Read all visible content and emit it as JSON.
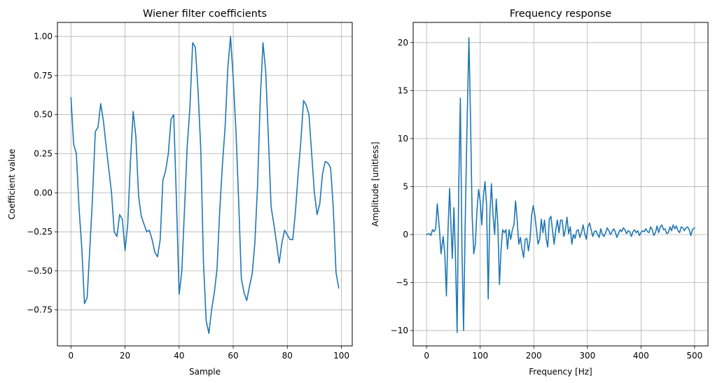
{
  "chart_data": [
    {
      "type": "line",
      "title": "Wiener filter coefficients",
      "xlabel": "Sample",
      "ylabel": "Coefficient value",
      "xlim": [
        -5,
        104
      ],
      "ylim": [
        -0.98,
        1.09
      ],
      "xticks": [
        0,
        20,
        40,
        60,
        80,
        100
      ],
      "yticks": [
        -0.75,
        -0.5,
        -0.25,
        0.0,
        0.25,
        0.5,
        0.75,
        1.0
      ],
      "xtick_labels": [
        "0",
        "20",
        "40",
        "60",
        "80",
        "100"
      ],
      "ytick_labels": [
        "−0.75",
        "−0.50",
        "−0.25",
        "0.00",
        "0.25",
        "0.50",
        "0.75",
        "1.00"
      ],
      "grid": true,
      "color": "#1f77b4",
      "series": [
        {
          "x": [
            0,
            1,
            2,
            3,
            4,
            5,
            6,
            7,
            8,
            9,
            10,
            11,
            12,
            13,
            14,
            15,
            16,
            17,
            18,
            19,
            20,
            21,
            22,
            23,
            24,
            25,
            26,
            27,
            28,
            29,
            30,
            31,
            32,
            33,
            34,
            35,
            36,
            37,
            38,
            39,
            40,
            41,
            42,
            43,
            44,
            45,
            46,
            47,
            48,
            49,
            50,
            51,
            52,
            53,
            54,
            55,
            56,
            57,
            58,
            59,
            60,
            61,
            62,
            63,
            64,
            65,
            66,
            67,
            68,
            69,
            70,
            71,
            72,
            73,
            74,
            75,
            76,
            77,
            78,
            79,
            80,
            81,
            82,
            83,
            84,
            85,
            86,
            87,
            88,
            89,
            90,
            91,
            92,
            93,
            94,
            95,
            96,
            97,
            98,
            99
          ],
          "values": [
            0.61,
            0.31,
            0.25,
            -0.1,
            -0.35,
            -0.71,
            -0.67,
            -0.35,
            -0.02,
            0.39,
            0.42,
            0.57,
            0.46,
            0.3,
            0.15,
            0.0,
            -0.25,
            -0.28,
            -0.14,
            -0.17,
            -0.37,
            -0.2,
            0.2,
            0.52,
            0.36,
            -0.02,
            -0.15,
            -0.2,
            -0.25,
            -0.24,
            -0.3,
            -0.38,
            -0.41,
            -0.3,
            0.08,
            0.14,
            0.25,
            0.47,
            0.5,
            -0.05,
            -0.65,
            -0.5,
            -0.1,
            0.3,
            0.55,
            0.96,
            0.93,
            0.65,
            0.28,
            -0.45,
            -0.82,
            -0.9,
            -0.75,
            -0.64,
            -0.49,
            -0.12,
            0.18,
            0.42,
            0.8,
            1.0,
            0.73,
            0.4,
            -0.05,
            -0.55,
            -0.64,
            -0.69,
            -0.6,
            -0.52,
            -0.32,
            0.05,
            0.6,
            0.96,
            0.78,
            0.35,
            -0.09,
            -0.2,
            -0.32,
            -0.45,
            -0.32,
            -0.24,
            -0.27,
            -0.3,
            -0.3,
            -0.12,
            0.12,
            0.33,
            0.59,
            0.56,
            0.5,
            0.25,
            0.0,
            -0.14,
            -0.07,
            0.12,
            0.2,
            0.19,
            0.16,
            -0.1,
            -0.51,
            -0.61
          ]
        }
      ]
    },
    {
      "type": "line",
      "title": "Frequency response",
      "xlabel": "Frequency [Hz]",
      "ylabel": "Amplitude [unitless]",
      "xlim": [
        -25,
        525
      ],
      "ylim": [
        -11.6,
        22.1
      ],
      "xticks": [
        0,
        100,
        200,
        300,
        400,
        500
      ],
      "yticks": [
        -10,
        -5,
        0,
        5,
        10,
        15,
        20
      ],
      "xtick_labels": [
        "0",
        "100",
        "200",
        "300",
        "400",
        "500"
      ],
      "ytick_labels": [
        "−10",
        "−5",
        "0",
        "5",
        "10",
        "15",
        "20"
      ],
      "grid": true,
      "color": "#1f77b4",
      "series": [
        {
          "x": [
            0,
            5,
            8,
            11,
            14,
            17,
            20,
            24,
            27,
            31,
            34,
            37,
            40,
            43,
            46,
            48,
            51,
            54,
            57,
            60,
            63,
            66,
            69,
            72,
            75,
            79,
            82,
            85,
            88,
            91,
            94,
            97,
            100,
            103,
            106,
            109,
            112,
            115,
            118,
            121,
            124,
            127,
            130,
            133,
            136,
            139,
            142,
            145,
            148,
            151,
            154,
            157,
            160,
            163,
            166,
            169,
            172,
            175,
            178,
            181,
            184,
            187,
            190,
            193,
            196,
            199,
            202,
            205,
            208,
            211,
            214,
            217,
            220,
            223,
            226,
            229,
            232,
            235,
            238,
            241,
            244,
            247,
            250,
            253,
            256,
            259,
            262,
            265,
            268,
            271,
            274,
            277,
            280,
            283,
            286,
            289,
            292,
            295,
            298,
            301,
            304,
            307,
            310,
            313,
            316,
            319,
            322,
            325,
            328,
            331,
            334,
            337,
            340,
            343,
            346,
            349,
            352,
            355,
            358,
            361,
            364,
            367,
            370,
            373,
            376,
            379,
            382,
            385,
            388,
            391,
            394,
            397,
            400,
            403,
            406,
            409,
            412,
            415,
            418,
            421,
            424,
            427,
            430,
            433,
            436,
            439,
            442,
            445,
            448,
            451,
            454,
            457,
            460,
            463,
            466,
            469,
            472,
            475,
            478,
            481,
            484,
            487,
            490,
            493,
            496,
            500
          ],
          "values": [
            0,
            0.1,
            -0.1,
            0.5,
            0.3,
            0.6,
            3.2,
            0.5,
            -2.0,
            -0.2,
            -2.0,
            -6.4,
            0.5,
            4.8,
            0.2,
            -2.5,
            2.8,
            -2.5,
            -10.2,
            5,
            14.2,
            -1.5,
            -10,
            1,
            10,
            20.5,
            12,
            2,
            -2.0,
            -1.0,
            2.5,
            4.7,
            3.5,
            1.0,
            4.0,
            5.5,
            3.0,
            -6.7,
            2,
            5.3,
            2,
            0,
            3.7,
            1.0,
            -5.2,
            -1.5,
            0.5,
            0.2,
            0.5,
            -1.5,
            0.5,
            -0.5,
            0.5,
            1,
            3.5,
            1.5,
            -1,
            -0.3,
            -1.5,
            -2.4,
            -0.5,
            -0.4,
            -1.7,
            -0.5,
            2.0,
            3.0,
            2.0,
            0.5,
            -1.0,
            -0.5,
            1.6,
            0.2,
            1.5,
            -0.4,
            -1.3,
            1.6,
            1.9,
            0.4,
            -1.0,
            0.5,
            1.5,
            0.2,
            1.5,
            1.5,
            -0.2,
            0.5,
            1.8,
            0.1,
            0.8,
            -1.0,
            0,
            -0.4,
            0.4,
            0.5,
            -0.3,
            0.2,
            1.0,
            0.1,
            -0.5,
            0.8,
            1.2,
            0.5,
            -0.2,
            0.3,
            0.4,
            0,
            -0.3,
            0.6,
            0,
            -0.2,
            0.2,
            0.7,
            0.4,
            0,
            0.3,
            0.6,
            0.3,
            -0.3,
            0.1,
            0.5,
            0.3,
            0.7,
            0.5,
            0.1,
            0.4,
            0.3,
            -0.2,
            0.3,
            0.5,
            0.2,
            0.4,
            -0.1,
            0.2,
            0.4,
            0.3,
            0.6,
            0.3,
            0.2,
            0.8,
            0.5,
            -0.1,
            0.2,
            0.9,
            0.2,
            0.8,
            1.0,
            0.5,
            0.6,
            0.1,
            0.2,
            0.8,
            0.4,
            1.0,
            0.6,
            0.9,
            0.4,
            0.2,
            0.8,
            0.7,
            0.4,
            0.7,
            0.8,
            0.5,
            -0.1,
            0.5,
            0.7
          ]
        }
      ]
    }
  ]
}
